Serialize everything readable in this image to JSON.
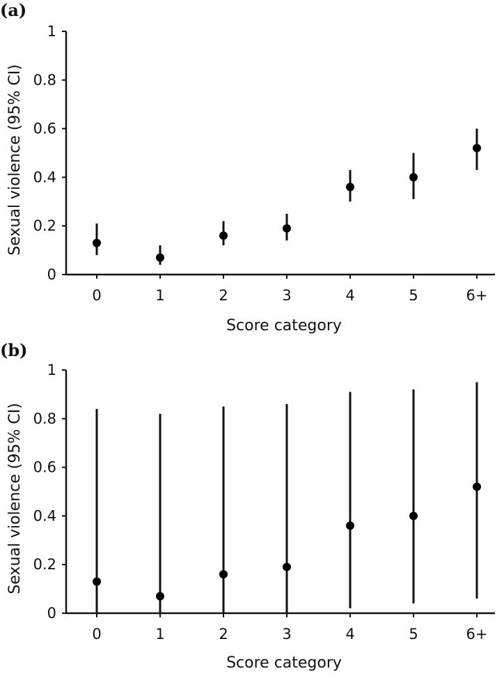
{
  "chart_data": [
    {
      "type": "scatter",
      "panel_label": "(a)",
      "xlabel": "Score category",
      "ylabel": "Sexual violence (95% CI)",
      "categories": [
        "0",
        "1",
        "2",
        "3",
        "4",
        "5",
        "6+"
      ],
      "ylim": [
        0,
        1
      ],
      "yticks": [
        0,
        0.2,
        0.4,
        0.6,
        0.8,
        1
      ],
      "ytick_labels": [
        "0",
        "0.2",
        "0.4",
        "0.6",
        "0.8",
        "1"
      ],
      "values": [
        0.13,
        0.07,
        0.16,
        0.19,
        0.36,
        0.4,
        0.52
      ],
      "ci_lower": [
        0.08,
        0.04,
        0.12,
        0.14,
        0.3,
        0.31,
        0.43
      ],
      "ci_upper": [
        0.21,
        0.12,
        0.22,
        0.25,
        0.43,
        0.5,
        0.6
      ],
      "grid": false
    },
    {
      "type": "scatter",
      "panel_label": "(b)",
      "xlabel": "Score category",
      "ylabel": "Sexual violence (95% CI)",
      "categories": [
        "0",
        "1",
        "2",
        "3",
        "4",
        "5",
        "6+"
      ],
      "ylim": [
        0,
        1
      ],
      "yticks": [
        0,
        0.2,
        0.4,
        0.6,
        0.8,
        1
      ],
      "ytick_labels": [
        "0",
        "0.2",
        "0.4",
        "0.6",
        "0.8",
        "1"
      ],
      "values": [
        0.13,
        0.07,
        0.16,
        0.19,
        0.36,
        0.4,
        0.52
      ],
      "ci_lower": [
        0.0,
        0.0,
        0.0,
        0.0,
        0.02,
        0.04,
        0.06
      ],
      "ci_upper": [
        0.84,
        0.82,
        0.85,
        0.86,
        0.91,
        0.92,
        0.95
      ],
      "grid": false
    }
  ]
}
